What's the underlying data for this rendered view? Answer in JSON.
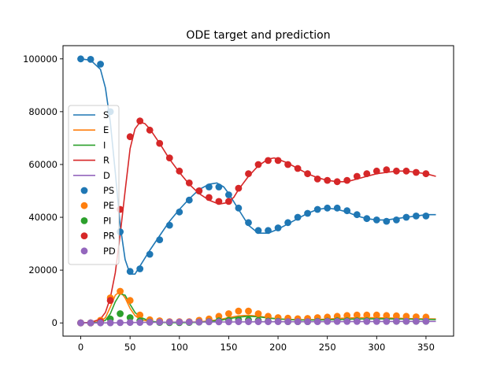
{
  "chart_data": {
    "type": "line",
    "title": "ODE target and prediction",
    "xlabel": "",
    "ylabel": "",
    "xlim": [
      -18,
      378
    ],
    "ylim": [
      -5000,
      105000
    ],
    "x_ticks": [
      0,
      50,
      100,
      150,
      200,
      250,
      300,
      350
    ],
    "x_tick_labels": [
      "0",
      "50",
      "100",
      "150",
      "200",
      "250",
      "300",
      "350"
    ],
    "y_ticks": [
      0,
      20000,
      40000,
      60000,
      80000,
      100000
    ],
    "y_tick_labels": [
      "0",
      "20000",
      "40000",
      "60000",
      "80000",
      "100000"
    ],
    "grid": false,
    "legend_position": "center-left",
    "legend": [
      {
        "label": "S",
        "kind": "line",
        "color": "#1f77b4"
      },
      {
        "label": "E",
        "kind": "line",
        "color": "#ff7f0e"
      },
      {
        "label": "I",
        "kind": "line",
        "color": "#2ca02c"
      },
      {
        "label": "R",
        "kind": "line",
        "color": "#d62728"
      },
      {
        "label": "D",
        "kind": "line",
        "color": "#9467bd"
      },
      {
        "label": "PS",
        "kind": "marker",
        "color": "#1f77b4"
      },
      {
        "label": "PE",
        "kind": "marker",
        "color": "#ff7f0e"
      },
      {
        "label": "PI",
        "kind": "marker",
        "color": "#2ca02c"
      },
      {
        "label": "PR",
        "kind": "marker",
        "color": "#d62728"
      },
      {
        "label": "PD",
        "kind": "marker",
        "color": "#9467bd"
      }
    ],
    "lines": [
      {
        "name": "S",
        "color": "#1f77b4",
        "x": [
          0,
          10,
          20,
          25,
          30,
          35,
          40,
          45,
          50,
          55,
          60,
          70,
          80,
          90,
          100,
          110,
          120,
          130,
          138,
          145,
          150,
          160,
          170,
          180,
          190,
          200,
          210,
          220,
          230,
          240,
          250,
          260,
          270,
          280,
          290,
          300,
          310,
          320,
          330,
          340,
          350,
          360
        ],
        "y": [
          100000,
          99500,
          96000,
          89000,
          76000,
          57000,
          37000,
          24000,
          18500,
          18500,
          21500,
          27500,
          33000,
          38500,
          43000,
          47000,
          50500,
          52500,
          53000,
          51500,
          49000,
          43000,
          37000,
          34000,
          34000,
          35500,
          37500,
          39500,
          41500,
          43000,
          43500,
          43000,
          42000,
          40500,
          39500,
          39000,
          39000,
          39500,
          40000,
          40500,
          41000,
          41000
        ]
      },
      {
        "name": "E",
        "color": "#ff7f0e",
        "x": [
          0,
          10,
          20,
          25,
          30,
          35,
          40,
          45,
          50,
          55,
          60,
          70,
          80,
          90,
          100,
          120,
          140,
          150,
          160,
          170,
          180,
          190,
          200,
          220,
          240,
          260,
          280,
          300,
          320,
          340,
          360
        ],
        "y": [
          0,
          50,
          500,
          2000,
          6000,
          10500,
          12000,
          9500,
          5500,
          2800,
          1400,
          500,
          250,
          150,
          150,
          400,
          1200,
          2000,
          2700,
          2900,
          2600,
          2000,
          1500,
          1200,
          1300,
          1700,
          2000,
          2000,
          1800,
          1600,
          1500
        ]
      },
      {
        "name": "I",
        "color": "#2ca02c",
        "x": [
          0,
          10,
          20,
          25,
          30,
          35,
          40,
          45,
          50,
          55,
          60,
          70,
          80,
          90,
          100,
          120,
          140,
          150,
          160,
          170,
          180,
          190,
          200,
          220,
          240,
          260,
          280,
          300,
          320,
          340,
          360
        ],
        "y": [
          0,
          30,
          300,
          1000,
          3500,
          8000,
          11000,
          10500,
          7000,
          4000,
          2200,
          700,
          250,
          120,
          100,
          250,
          900,
          1600,
          2200,
          2500,
          2300,
          1900,
          1500,
          1100,
          1100,
          1300,
          1500,
          1600,
          1500,
          1400,
          1300
        ]
      },
      {
        "name": "R",
        "color": "#d62728",
        "x": [
          0,
          10,
          20,
          25,
          30,
          35,
          40,
          45,
          50,
          55,
          60,
          65,
          70,
          80,
          90,
          100,
          110,
          120,
          130,
          140,
          148,
          155,
          160,
          170,
          180,
          190,
          196,
          200,
          210,
          220,
          230,
          240,
          250,
          260,
          270,
          280,
          290,
          300,
          310,
          320,
          330,
          340,
          350,
          360
        ],
        "y": [
          0,
          200,
          1500,
          4000,
          9500,
          19000,
          33500,
          50000,
          66000,
          73500,
          76000,
          75500,
          73500,
          68000,
          62000,
          57000,
          52500,
          49000,
          46500,
          45000,
          45500,
          47500,
          50500,
          55500,
          59500,
          62000,
          62500,
          62000,
          60500,
          58500,
          56500,
          55000,
          54000,
          53500,
          53500,
          54500,
          55500,
          56500,
          57000,
          57500,
          57500,
          57000,
          56500,
          55500
        ]
      },
      {
        "name": "D",
        "color": "#9467bd",
        "x": [
          0,
          20,
          40,
          60,
          100,
          150,
          200,
          250,
          300,
          360
        ],
        "y": [
          0,
          10,
          80,
          200,
          300,
          380,
          450,
          500,
          540,
          580
        ]
      }
    ],
    "points": [
      {
        "name": "PS",
        "color": "#1f77b4",
        "x": [
          0,
          10,
          20,
          30,
          40,
          50,
          60,
          70,
          80,
          90,
          100,
          110,
          120,
          130,
          140,
          150,
          160,
          170,
          180,
          190,
          200,
          210,
          220,
          230,
          240,
          250,
          260,
          270,
          280,
          290,
          300,
          310,
          320,
          330,
          340,
          350
        ],
        "y": [
          100000,
          99800,
          98000,
          80000,
          34500,
          19500,
          20500,
          26000,
          31500,
          37000,
          42000,
          46500,
          50000,
          51500,
          51500,
          48500,
          43500,
          38000,
          35000,
          35000,
          36000,
          38000,
          40000,
          41500,
          43000,
          43500,
          43500,
          42500,
          41000,
          39500,
          39000,
          38500,
          39000,
          40000,
          40500,
          40500
        ]
      },
      {
        "name": "PE",
        "color": "#ff7f0e",
        "x": [
          0,
          10,
          20,
          30,
          40,
          50,
          60,
          70,
          80,
          90,
          100,
          110,
          120,
          130,
          140,
          150,
          160,
          170,
          180,
          190,
          200,
          210,
          220,
          230,
          240,
          250,
          260,
          270,
          280,
          290,
          300,
          310,
          320,
          330,
          340,
          350
        ],
        "y": [
          0,
          0,
          1000,
          9500,
          12000,
          8500,
          3000,
          1200,
          800,
          500,
          500,
          500,
          1000,
          1500,
          2500,
          3500,
          4500,
          4500,
          3500,
          2500,
          2000,
          1800,
          1600,
          1700,
          2000,
          2200,
          2500,
          2800,
          3000,
          3000,
          3000,
          2800,
          2700,
          2500,
          2300,
          2200
        ]
      },
      {
        "name": "PI",
        "color": "#2ca02c",
        "x": [
          0,
          10,
          20,
          30,
          40,
          50,
          60,
          70,
          80,
          90,
          100,
          110,
          120,
          130,
          140,
          150,
          160,
          170,
          180,
          190,
          200,
          210,
          220,
          230,
          240,
          250,
          260,
          270,
          280,
          290,
          300,
          310,
          320,
          330,
          340,
          350
        ],
        "y": [
          0,
          0,
          200,
          1500,
          3500,
          2000,
          800,
          300,
          200,
          100,
          100,
          200,
          300,
          500,
          800,
          1000,
          1200,
          1100,
          900,
          700,
          600,
          500,
          500,
          500,
          600,
          700,
          800,
          800,
          800,
          800,
          700,
          700,
          600,
          600,
          600,
          600
        ]
      },
      {
        "name": "PR",
        "color": "#d62728",
        "x": [
          0,
          10,
          20,
          30,
          40,
          50,
          60,
          70,
          80,
          90,
          100,
          110,
          120,
          130,
          140,
          150,
          160,
          170,
          180,
          190,
          200,
          210,
          220,
          230,
          240,
          250,
          260,
          270,
          280,
          290,
          300,
          310,
          320,
          330,
          340,
          350
        ],
        "y": [
          0,
          0,
          500,
          8500,
          43000,
          70500,
          76500,
          73000,
          68000,
          62500,
          57500,
          53000,
          50000,
          47500,
          46000,
          46000,
          51000,
          56500,
          60000,
          61500,
          61500,
          60000,
          58500,
          56500,
          54500,
          54000,
          53500,
          54000,
          55500,
          56500,
          57500,
          58000,
          57500,
          57500,
          57000,
          56500
        ]
      },
      {
        "name": "PD",
        "color": "#9467bd",
        "x": [
          0,
          10,
          20,
          30,
          40,
          50,
          60,
          70,
          80,
          90,
          100,
          110,
          120,
          130,
          140,
          150,
          160,
          170,
          180,
          190,
          200,
          210,
          220,
          230,
          240,
          250,
          260,
          270,
          280,
          290,
          300,
          310,
          320,
          330,
          340,
          350
        ],
        "y": [
          0,
          0,
          0,
          50,
          100,
          150,
          200,
          250,
          300,
          300,
          350,
          350,
          350,
          400,
          400,
          400,
          450,
          450,
          450,
          450,
          500,
          500,
          500,
          500,
          500,
          550,
          550,
          550,
          550,
          550,
          550,
          550,
          600,
          600,
          600,
          600
        ]
      }
    ]
  }
}
